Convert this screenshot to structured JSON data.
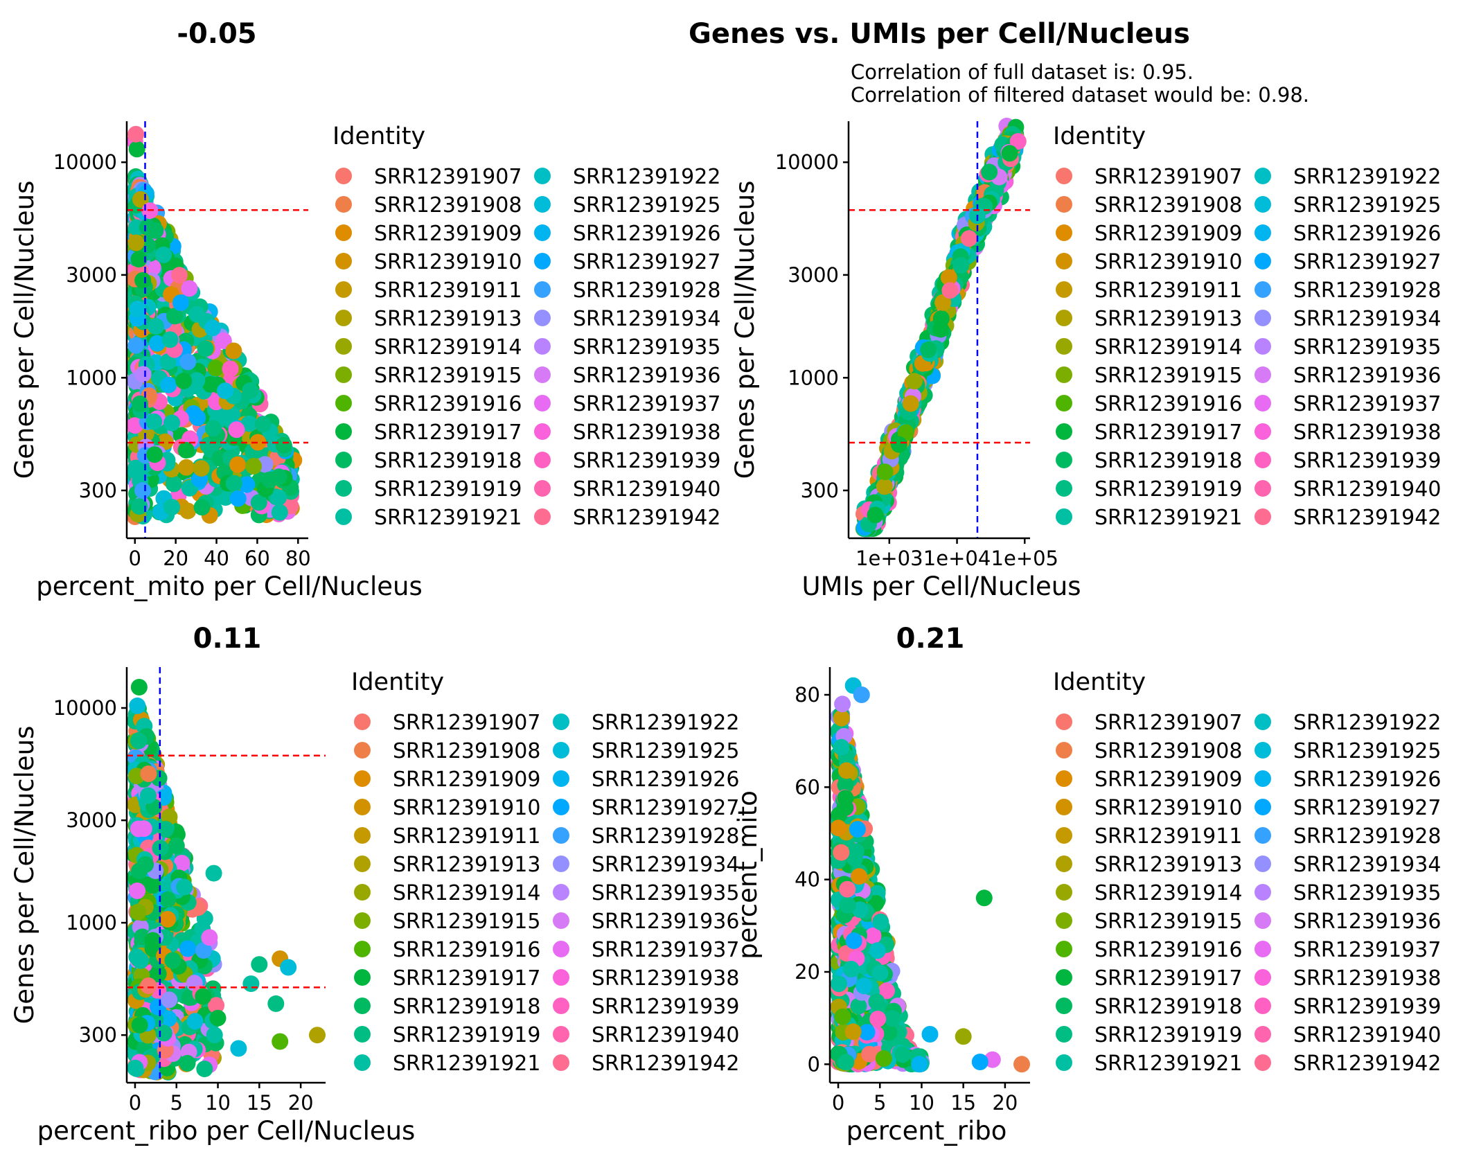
{
  "figure": {
    "panels": [
      {
        "title": "-0.05"
      },
      {
        "title": "Genes vs. UMIs per Cell/Nucleus",
        "subtitle_lines": [
          "Correlation of full dataset is: 0.95.",
          "Correlation of filtered dataset would be: 0.98."
        ]
      },
      {
        "title": "0.11"
      },
      {
        "title": "0.21"
      }
    ]
  },
  "legend": {
    "title": "Identity",
    "entries": [
      {
        "label": "SRR12391907",
        "color": "#F8766D"
      },
      {
        "label": "SRR12391908",
        "color": "#EF7F48"
      },
      {
        "label": "SRR12391909",
        "color": "#DE8C00"
      },
      {
        "label": "SRR12391910",
        "color": "#D29200"
      },
      {
        "label": "SRR12391911",
        "color": "#C49A00"
      },
      {
        "label": "SRR12391913",
        "color": "#AFA200"
      },
      {
        "label": "SRR12391914",
        "color": "#98A800"
      },
      {
        "label": "SRR12391915",
        "color": "#7CAE00"
      },
      {
        "label": "SRR12391916",
        "color": "#4FB400"
      },
      {
        "label": "SRR12391917",
        "color": "#00B63F"
      },
      {
        "label": "SRR12391918",
        "color": "#00BA61"
      },
      {
        "label": "SRR12391919",
        "color": "#00BD84"
      },
      {
        "label": "SRR12391921",
        "color": "#00BFA3"
      },
      {
        "label": "SRR12391922",
        "color": "#00BFC4"
      },
      {
        "label": "SRR12391925",
        "color": "#00BCD8"
      },
      {
        "label": "SRR12391926",
        "color": "#00B4EF"
      },
      {
        "label": "SRR12391927",
        "color": "#00A9FF"
      },
      {
        "label": "SRR12391928",
        "color": "#35A2FF"
      },
      {
        "label": "SRR12391934",
        "color": "#9590FF"
      },
      {
        "label": "SRR12391935",
        "color": "#B983FF"
      },
      {
        "label": "SRR12391936",
        "color": "#D77AF6"
      },
      {
        "label": "SRR12391937",
        "color": "#E76BF3"
      },
      {
        "label": "SRR12391938",
        "color": "#FA62DB"
      },
      {
        "label": "SRR12391939",
        "color": "#FF61C3"
      },
      {
        "label": "SRR12391940",
        "color": "#FF65AE"
      },
      {
        "label": "SRR12391942",
        "color": "#FF6C91"
      }
    ]
  },
  "chart_data": [
    {
      "type": "scatter",
      "title": "-0.05",
      "xlabel": "percent_mito per Cell/Nucleus",
      "ylabel": "Genes per Cell/Nucleus",
      "x_scale": "linear",
      "y_scale": "log10",
      "xlim": [
        -4,
        85
      ],
      "ylim": [
        180,
        15500
      ],
      "x_ticks": [
        0,
        20,
        40,
        60,
        80
      ],
      "x_tick_labels": [
        "0",
        "20",
        "40",
        "60",
        "80"
      ],
      "y_ticks": [
        300,
        1000,
        3000,
        10000
      ],
      "y_tick_labels": [
        "300",
        "1000",
        "3000",
        "10000"
      ],
      "thresholds": {
        "vertical": [
          5
        ],
        "horizontal": [
          500,
          6000
        ]
      },
      "grid": false,
      "legend_position": "right"
    },
    {
      "type": "scatter",
      "title": "Genes vs. UMIs per Cell/Nucleus",
      "xlabel": "UMIs per Cell/Nucleus",
      "ylabel": "Genes per Cell/Nucleus",
      "x_scale": "log10",
      "y_scale": "log10",
      "xlim": [
        250,
        120000
      ],
      "ylim": [
        180,
        15500
      ],
      "x_ticks": [
        1000,
        10000,
        100000
      ],
      "x_tick_labels": [
        "1e+03",
        "1e+04",
        "1e+05"
      ],
      "y_ticks": [
        300,
        1000,
        3000,
        10000
      ],
      "y_tick_labels": [
        "300",
        "1000",
        "3000",
        "10000"
      ],
      "thresholds": {
        "vertical": [
          20000
        ],
        "horizontal": [
          500,
          6000
        ]
      },
      "grid": false,
      "legend_position": "right"
    },
    {
      "type": "scatter",
      "title": "0.11",
      "xlabel": "percent_ribo per Cell/Nucleus",
      "ylabel": "Genes per Cell/Nucleus",
      "x_scale": "linear",
      "y_scale": "log10",
      "xlim": [
        -1,
        23
      ],
      "ylim": [
        180,
        15500
      ],
      "x_ticks": [
        0,
        5,
        10,
        15,
        20
      ],
      "x_tick_labels": [
        "0",
        "5",
        "10",
        "15",
        "20"
      ],
      "y_ticks": [
        300,
        1000,
        3000,
        10000
      ],
      "y_tick_labels": [
        "300",
        "1000",
        "3000",
        "10000"
      ],
      "thresholds": {
        "vertical": [
          3
        ],
        "horizontal": [
          500,
          6000
        ]
      },
      "grid": false,
      "legend_position": "right"
    },
    {
      "type": "scatter",
      "title": "0.21",
      "xlabel": "percent_ribo",
      "ylabel": "percent_mito",
      "x_scale": "linear",
      "y_scale": "linear",
      "xlim": [
        -1,
        23
      ],
      "ylim": [
        -4,
        86
      ],
      "x_ticks": [
        0,
        5,
        10,
        15,
        20
      ],
      "x_tick_labels": [
        "0",
        "5",
        "10",
        "15",
        "20"
      ],
      "y_ticks": [
        0,
        20,
        40,
        60,
        80
      ],
      "y_tick_labels": [
        "0",
        "20",
        "40",
        "60",
        "80"
      ],
      "thresholds": {
        "vertical": [],
        "horizontal": []
      },
      "grid": false,
      "legend_position": "right"
    }
  ]
}
